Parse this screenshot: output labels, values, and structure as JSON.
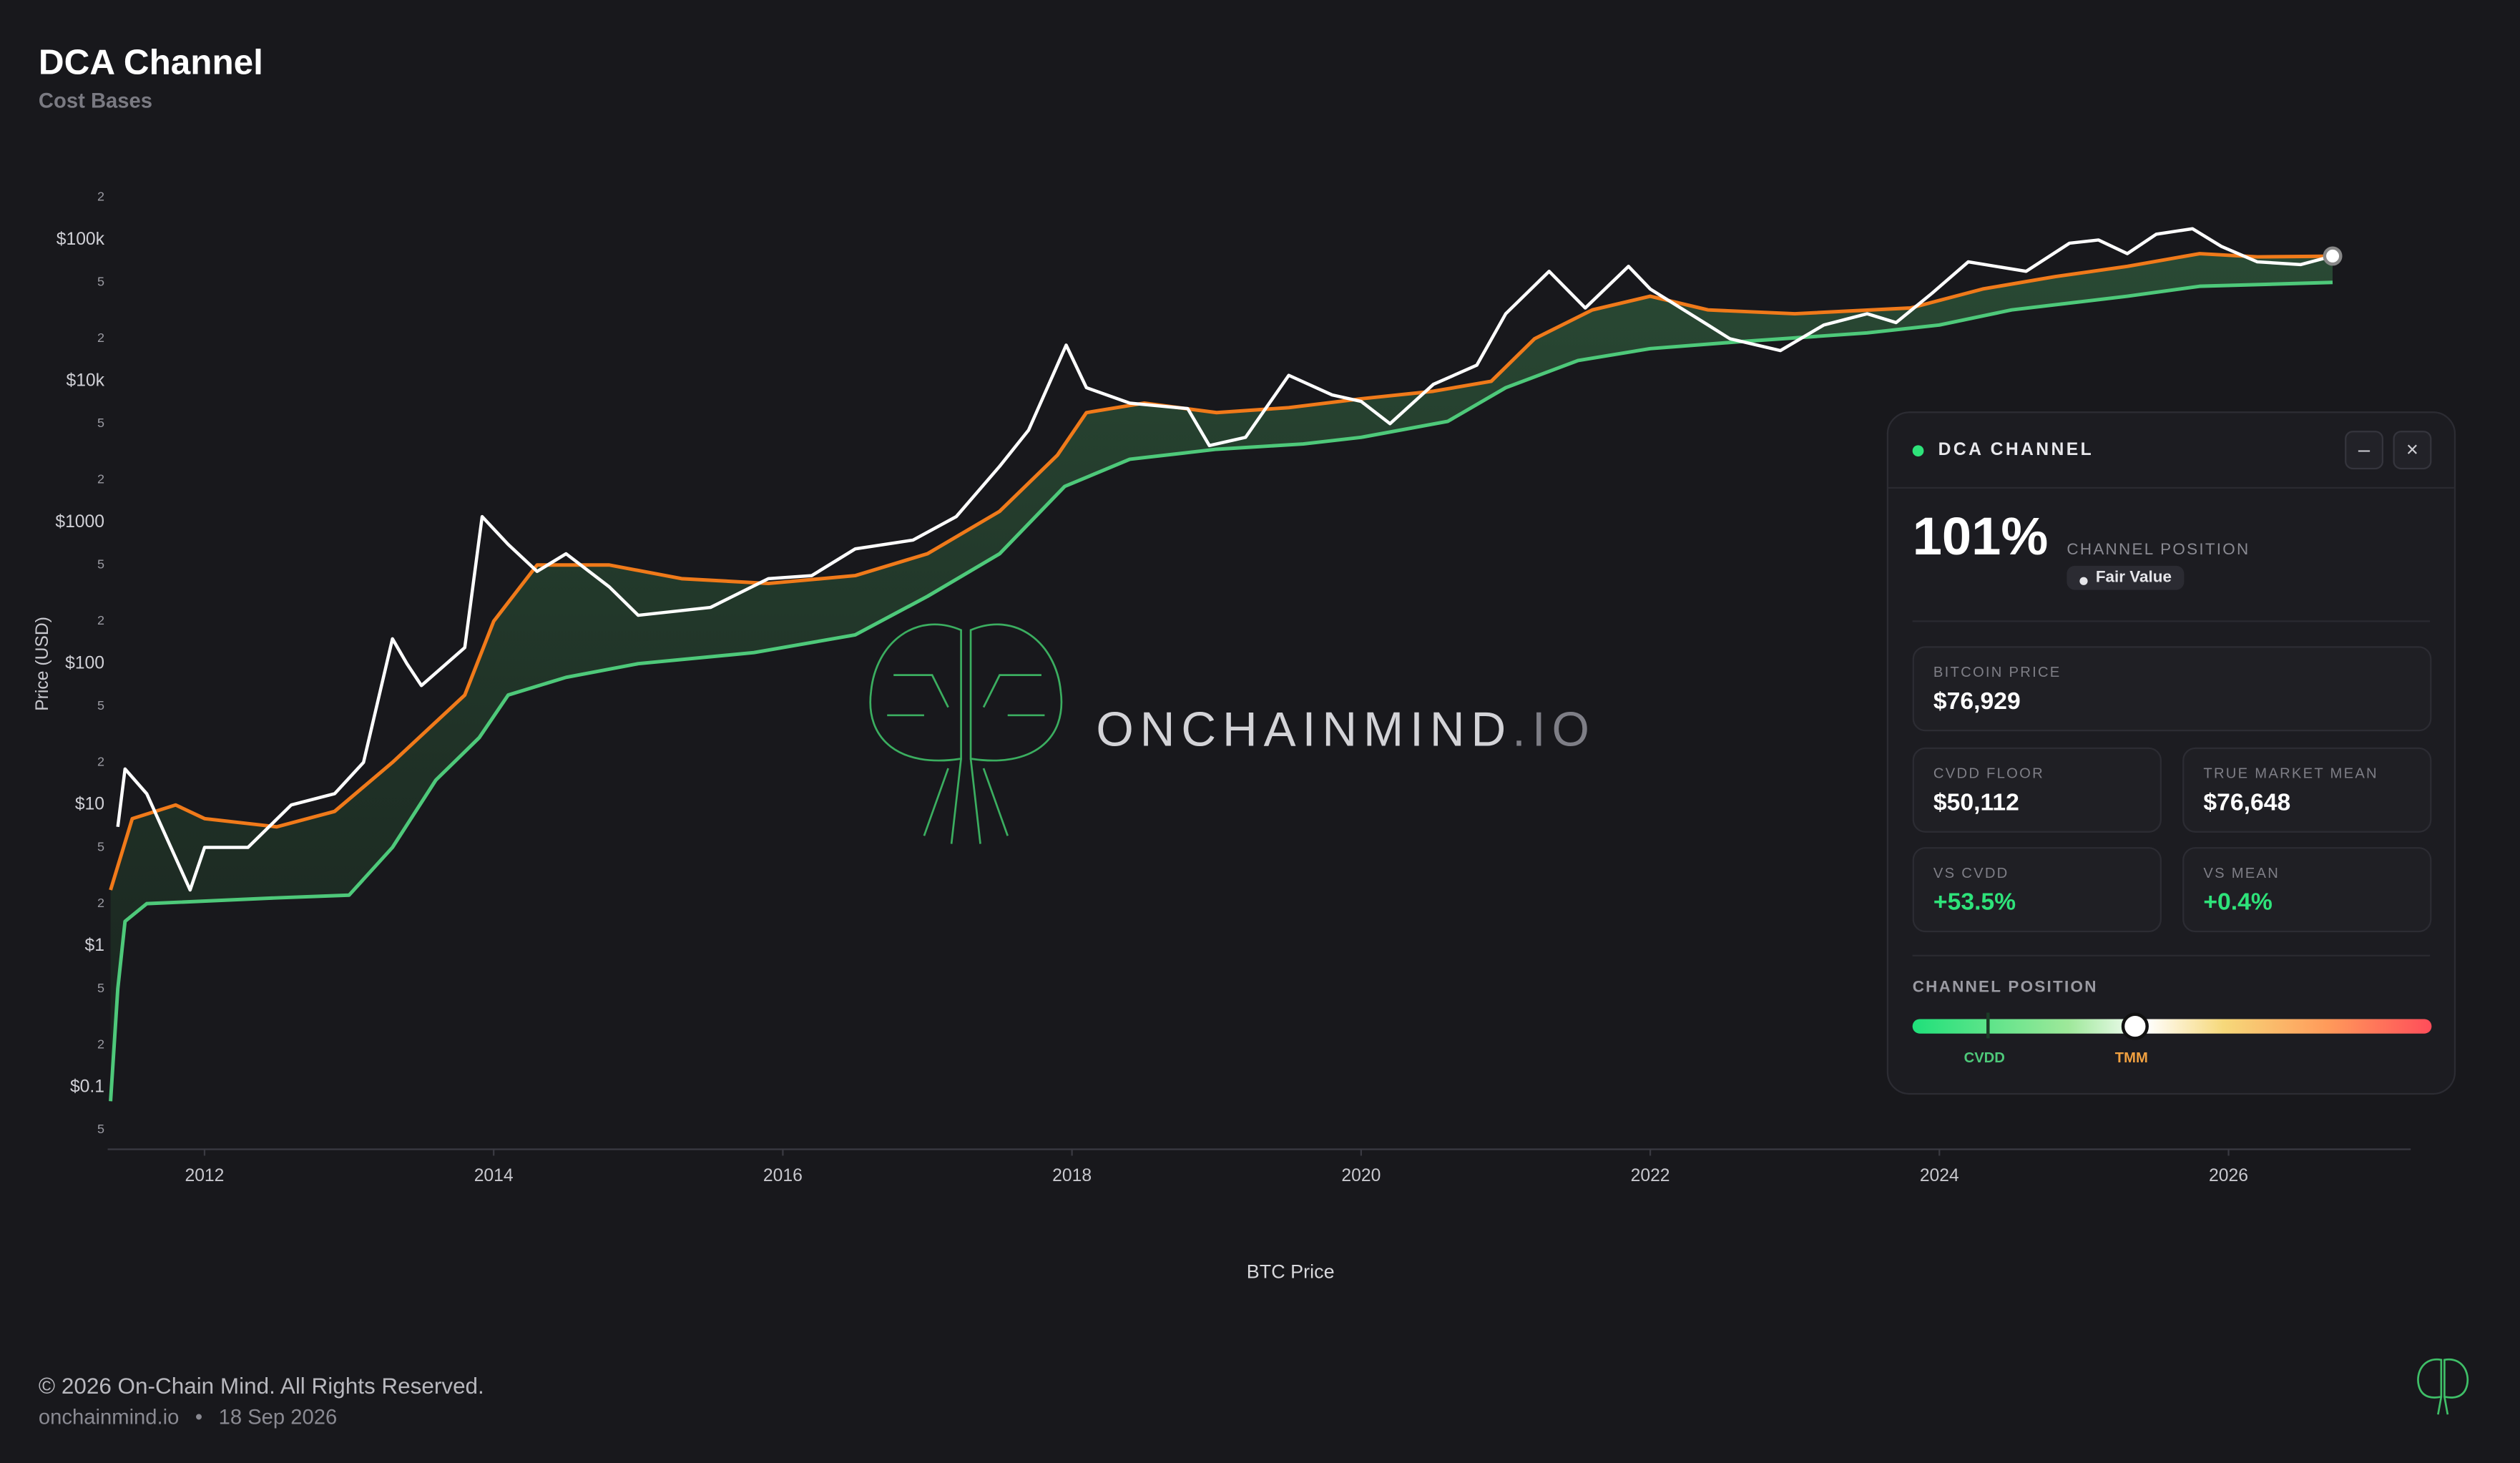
{
  "chart_data": {
    "type": "line",
    "title": "DCA Channel",
    "subtitle": "Cost Bases",
    "y_label": "Price (USD)",
    "log_scale": true,
    "grid": false,
    "xlim": [
      2011.33,
      2027.26
    ],
    "xticks": [
      2012,
      2014,
      2016,
      2018,
      2020,
      2022,
      2024,
      2026
    ],
    "ylim": [
      0.0365,
      280000
    ],
    "yticks": [
      {
        "value": 0.05,
        "label": "5"
      },
      {
        "value": 0.1,
        "label": "$0.1"
      },
      {
        "value": 0.2,
        "label": "2"
      },
      {
        "value": 0.5,
        "label": "5"
      },
      {
        "value": 1,
        "label": "$1"
      },
      2,
      5,
      {
        "value": 10,
        "label": "$10"
      },
      {
        "value": 20,
        "label": "2"
      },
      {
        "value": 50,
        "label": "5"
      },
      {
        "value": 100,
        "label": "$100"
      },
      {
        "value": 200,
        "label": "2"
      },
      {
        "value": 500,
        "label": "5"
      },
      {
        "value": 1000,
        "label": "$1000"
      },
      {
        "value": 2000,
        "label": "2"
      },
      {
        "value": 5000,
        "label": "5"
      },
      {
        "value": 10000,
        "label": "$10k"
      },
      {
        "value": 20000,
        "label": "2"
      },
      {
        "value": 50000,
        "label": "5"
      },
      {
        "value": 100000,
        "label": "$100k"
      },
      {
        "value": 200000,
        "label": "2"
      }
    ],
    "series": [
      {
        "name": "BTC Price",
        "color": "#ffffff",
        "x": [
          2011.4,
          2011.45,
          2011.6,
          2011.9,
          2012.0,
          2012.3,
          2012.6,
          2012.9,
          2013.1,
          2013.3,
          2013.4,
          2013.5,
          2013.8,
          2013.92,
          2014.1,
          2014.3,
          2014.5,
          2014.8,
          2015.0,
          2015.5,
          2015.9,
          2016.2,
          2016.5,
          2016.9,
          2017.2,
          2017.5,
          2017.7,
          2017.96,
          2018.1,
          2018.4,
          2018.8,
          2018.95,
          2019.2,
          2019.5,
          2019.8,
          2020.0,
          2020.2,
          2020.5,
          2020.8,
          2021.0,
          2021.3,
          2021.55,
          2021.85,
          2022.0,
          2022.4,
          2022.55,
          2022.9,
          2023.2,
          2023.5,
          2023.7,
          2023.95,
          2024.2,
          2024.6,
          2024.9,
          2025.1,
          2025.3,
          2025.5,
          2025.75,
          2025.95,
          2026.2,
          2026.5,
          2026.72
        ],
        "values": [
          7,
          18,
          12,
          2.5,
          5,
          5,
          10,
          12,
          20,
          150,
          100,
          70,
          130,
          1100,
          700,
          450,
          600,
          350,
          220,
          250,
          400,
          420,
          650,
          750,
          1100,
          2500,
          4500,
          18000,
          9000,
          7000,
          6400,
          3500,
          4000,
          11000,
          8000,
          7200,
          5000,
          9500,
          13000,
          30000,
          60000,
          33000,
          65000,
          45000,
          25000,
          20000,
          16500,
          25000,
          30000,
          26000,
          42000,
          70000,
          60000,
          95000,
          100000,
          80000,
          110000,
          120000,
          90000,
          70000,
          67000,
          76929
        ]
      },
      {
        "color": "#f07a1a",
        "x": [
          2011.35,
          2011.5,
          2011.8,
          2012.0,
          2012.5,
          2012.9,
          2013.3,
          2013.8,
          2014.0,
          2014.3,
          2014.8,
          2015.3,
          2015.9,
          2016.5,
          2017.0,
          2017.5,
          2017.9,
          2018.1,
          2018.5,
          2019.0,
          2019.5,
          2020.0,
          2020.5,
          2020.9,
          2021.2,
          2021.6,
          2022.0,
          2022.4,
          2023.0,
          2023.8,
          2024.3,
          2024.8,
          2025.3,
          2025.8,
          2026.2,
          2026.72
        ],
        "values": [
          2.5,
          8,
          10,
          8,
          7,
          9,
          20,
          60,
          200,
          500,
          500,
          400,
          370,
          420,
          600,
          1200,
          3000,
          6000,
          7000,
          6000,
          6500,
          7500,
          8500,
          10000,
          20000,
          32000,
          40000,
          32000,
          30000,
          33000,
          45000,
          55000,
          65000,
          80000,
          76000,
          76648
        ]
      },
      {
        "color": "#4ec97a",
        "x": [
          2011.35,
          2011.4,
          2011.45,
          2011.6,
          2012.5,
          2013.0,
          2013.3,
          2013.6,
          2013.9,
          2014.1,
          2014.5,
          2015.0,
          2015.8,
          2016.5,
          2017.0,
          2017.5,
          2017.95,
          2018.4,
          2019.0,
          2019.6,
          2020.0,
          2020.6,
          2021.0,
          2021.5,
          2022.0,
          2022.6,
          2023.5,
          2024.0,
          2024.5,
          2025.3,
          2025.8,
          2026.72
        ],
        "values": [
          0.08,
          0.5,
          1.5,
          2.0,
          2.2,
          2.3,
          5,
          15,
          30,
          60,
          80,
          100,
          120,
          160,
          300,
          600,
          1800,
          2800,
          3300,
          3600,
          4000,
          5200,
          9000,
          14000,
          17000,
          19000,
          22000,
          25000,
          32000,
          40000,
          47000,
          50112
        ]
      }
    ]
  },
  "watermark": {
    "name": "ONCHAINMIND",
    "suffix": ".IO"
  },
  "panel": {
    "title": "DCA CHANNEL",
    "position": "101%",
    "position_label": "CHANNEL POSITION",
    "status": "Fair Value",
    "cards": [
      {
        "label": "BITCOIN PRICE",
        "value": "$76,929"
      },
      {
        "label": "CVDD FLOOR",
        "value": "$50,112"
      },
      {
        "label": "TRUE MARKET MEAN",
        "value": "$76,648"
      },
      {
        "label": "VS CVDD",
        "value": "+53.5%"
      },
      {
        "label": "VS MEAN",
        "value": "+0.4%"
      }
    ],
    "gauge_title": "CHANNEL POSITION",
    "gauge_labels": [
      "CVDD",
      "TMM"
    ]
  },
  "footer": {
    "copyright": "© 2026 On-Chain Mind. All Rights Reserved.",
    "site": "onchainmind.io",
    "date": "18 Sep 2026"
  }
}
